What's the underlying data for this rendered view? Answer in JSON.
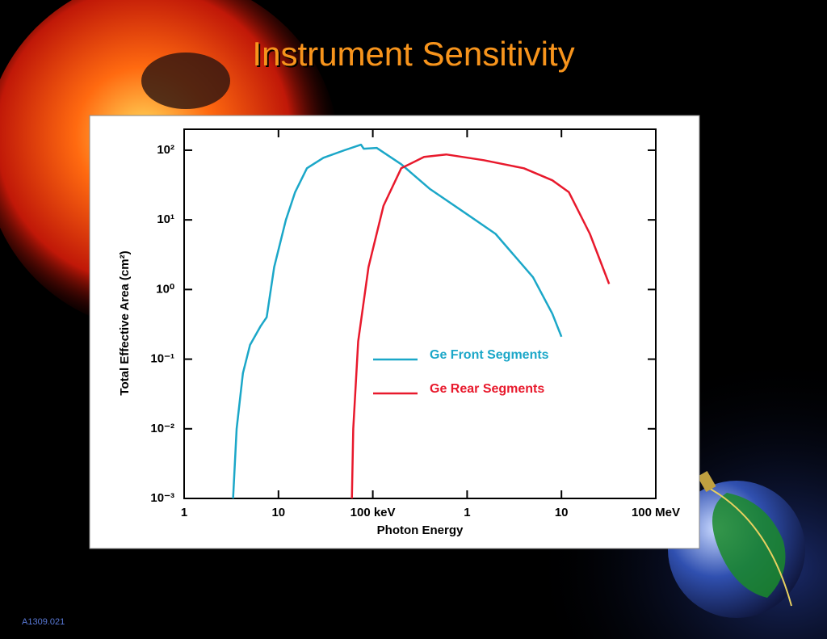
{
  "chart_data": {
    "type": "line",
    "title": "Instrument Sensitivity",
    "xlabel": "Photon Energy",
    "ylabel": "Total Effective Area (cm²)",
    "xscale": "log",
    "yscale": "log",
    "xlim": [
      1,
      100000
    ],
    "ylim": [
      0.001,
      200
    ],
    "xticks": [
      1,
      10,
      {
        "value": 100,
        "label": "100 keV"
      },
      {
        "value": 1000,
        "label": "1"
      },
      {
        "value": 10000,
        "label": "10"
      },
      {
        "value": 100000,
        "label": "100 MeV"
      }
    ],
    "yticks": [
      {
        "value": 100,
        "label": "10²"
      },
      {
        "value": 10,
        "label": "10¹"
      },
      {
        "value": 1,
        "label": "10⁰"
      },
      {
        "value": 0.1,
        "label": "10⁻¹"
      },
      {
        "value": 0.01,
        "label": "10⁻²"
      },
      {
        "value": 0.001,
        "label": "10⁻³"
      }
    ],
    "series": [
      {
        "name": "Ge Front Segments",
        "color": "#1ba7c8",
        "x": [
          3.3,
          3.6,
          4.2,
          5,
          6.5,
          7.5,
          9,
          12,
          15,
          20,
          30,
          50,
          75,
          80,
          110,
          200,
          400,
          1000,
          2000,
          5000,
          8000,
          10000
        ],
        "values": [
          0.001,
          0.01,
          0.063,
          0.16,
          0.3,
          0.4,
          2.1,
          10,
          25,
          55,
          78,
          100,
          120,
          105,
          108,
          63,
          28,
          12,
          6.3,
          1.5,
          0.45,
          0.21
        ]
      },
      {
        "name": "Ge Rear Segments",
        "color": "#e8192c",
        "x": [
          60,
          62,
          70,
          90,
          130,
          200,
          350,
          600,
          1500,
          4000,
          8000,
          12000,
          20000,
          32000
        ],
        "values": [
          0.001,
          0.01,
          0.18,
          2.1,
          16,
          55,
          80,
          87,
          72,
          55,
          37,
          25,
          6.3,
          1.2
        ]
      }
    ],
    "footer": "A1309.021"
  }
}
